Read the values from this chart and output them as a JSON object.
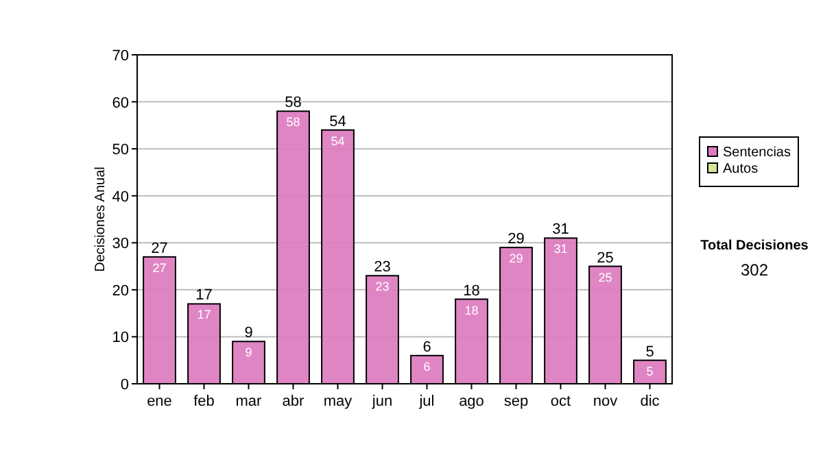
{
  "chart_data": {
    "type": "bar",
    "stacked": true,
    "ylabel": "Decisiones Anual",
    "categories": [
      "ene",
      "feb",
      "mar",
      "abr",
      "may",
      "jun",
      "jul",
      "ago",
      "sep",
      "oct",
      "nov",
      "dic"
    ],
    "series": [
      {
        "name": "Sentencias",
        "color": "#dd7bbf",
        "values": [
          27,
          17,
          9,
          58,
          54,
          23,
          6,
          18,
          29,
          31,
          25,
          5
        ],
        "value_labels": [
          "27",
          "17",
          "9",
          "58",
          "54",
          "23",
          "6",
          "18",
          "29",
          "31",
          "25",
          "5"
        ]
      },
      {
        "name": "Autos",
        "color": "#d4e89a",
        "values": [
          0,
          0,
          0,
          0,
          0,
          0,
          0,
          0,
          0,
          0,
          0,
          0
        ]
      }
    ],
    "totals": [
      "27",
      "17",
      "9",
      "58",
      "54",
      "23",
      "6",
      "18",
      "29",
      "31",
      "25",
      "5"
    ],
    "ylim": [
      0,
      70
    ],
    "yticks": [
      0,
      10,
      20,
      30,
      40,
      50,
      60,
      70
    ],
    "grid": "y",
    "legend": "right",
    "annotations": [
      "Total Decisiones",
      "302"
    ]
  }
}
